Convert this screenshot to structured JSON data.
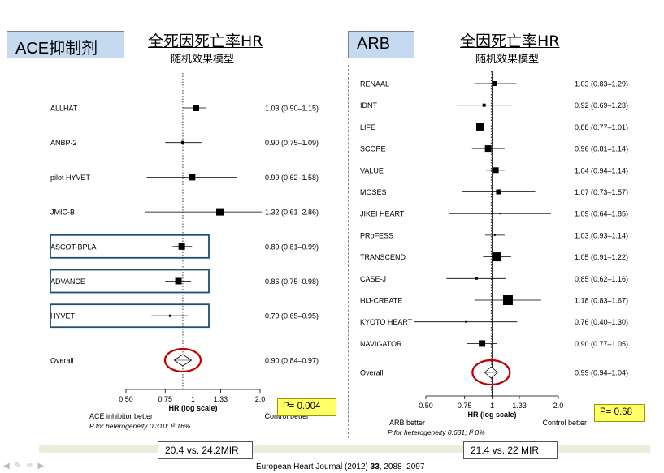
{
  "left_panel": {
    "tag": "ACE抑制剂",
    "title": "全死因死亡率HR",
    "subtitle": "随机效果模型",
    "pvalue_box": "P= 0.004",
    "events_box": "20.4 vs. 24.2MIR"
  },
  "right_panel": {
    "tag": "ARB",
    "title": "全因死亡率HR",
    "subtitle": "随机效果模型",
    "pvalue_box": "P= 0.68",
    "events_box": "21.4 vs. 22 MIR"
  },
  "citation": {
    "prefix": "European Heart Journal (2012) ",
    "volume": "33",
    "suffix": ", 2088–2097"
  },
  "chart_data": [
    {
      "type": "forest",
      "xlabel": "HR (log scale)",
      "x_scale": "log",
      "xticks": [
        0.5,
        0.75,
        1,
        1.33,
        2.0
      ],
      "xtick_labels": [
        "0.50",
        "0.75",
        "1",
        "1.33",
        "2.0"
      ],
      "xlim": [
        0.5,
        2.0
      ],
      "reference_line": 1,
      "overall_line": 0.9,
      "favours_left": "ACE inhibitor better",
      "favours_right": "Control better",
      "heterogeneity": "P for heterogeneity 0.310; I² 16%",
      "studies": [
        {
          "name": "ALLHAT",
          "hr": 1.03,
          "lo": 0.9,
          "hi": 1.15,
          "ci_text": "1.03 (0.90–1.15)",
          "weight": 8,
          "boxed": false
        },
        {
          "name": "ANBP-2",
          "hr": 0.9,
          "lo": 0.75,
          "hi": 1.09,
          "ci_text": "0.90 (0.75–1.09)",
          "weight": 4,
          "boxed": false
        },
        {
          "name": "pilot HYVET",
          "hr": 0.99,
          "lo": 0.62,
          "hi": 1.58,
          "ci_text": "0.99 (0.62–1.58)",
          "weight": 8,
          "boxed": false
        },
        {
          "name": "JMIC-B",
          "hr": 1.32,
          "lo": 0.61,
          "hi": 2.86,
          "ci_text": "1.32 (0.61–2.86)",
          "weight": 9,
          "boxed": false
        },
        {
          "name": "ASCOT-BPLA",
          "hr": 0.89,
          "lo": 0.81,
          "hi": 0.99,
          "ci_text": "0.89 (0.81–0.99)",
          "weight": 8,
          "boxed": true
        },
        {
          "name": "ADVANCE",
          "hr": 0.86,
          "lo": 0.75,
          "hi": 0.98,
          "ci_text": "0.86 (0.75–0.98)",
          "weight": 8,
          "boxed": true
        },
        {
          "name": "HYVET",
          "hr": 0.79,
          "lo": 0.65,
          "hi": 0.95,
          "ci_text": "0.79 (0.65–0.95)",
          "weight": 3,
          "boxed": true
        }
      ],
      "overall": {
        "name": "Overall",
        "hr": 0.9,
        "lo": 0.84,
        "hi": 0.97,
        "ci_text": "0.90 (0.84–0.97)"
      }
    },
    {
      "type": "forest",
      "xlabel": "HR (log scale)",
      "x_scale": "log",
      "xticks": [
        0.5,
        0.75,
        1,
        1.33,
        2.0
      ],
      "xtick_labels": [
        "0.50",
        "0.75",
        "1",
        "1.33",
        "2.0"
      ],
      "xlim": [
        0.5,
        2.0
      ],
      "reference_line": 1,
      "overall_line": 0.99,
      "favours_left": "ARB better",
      "favours_right": "Control better",
      "heterogeneity": "P for heterogeneity 0.631; I² 0%",
      "studies": [
        {
          "name": "RENAAL",
          "hr": 1.03,
          "lo": 0.83,
          "hi": 1.29,
          "ci_text": "1.03 (0.83–1.29)",
          "weight": 6,
          "boxed": false
        },
        {
          "name": "IDNT",
          "hr": 0.92,
          "lo": 0.69,
          "hi": 1.23,
          "ci_text": "0.92 (0.69–1.23)",
          "weight": 4,
          "boxed": false
        },
        {
          "name": "LIFE",
          "hr": 0.88,
          "lo": 0.77,
          "hi": 1.01,
          "ci_text": "0.88 (0.77–1.01)",
          "weight": 9,
          "boxed": false
        },
        {
          "name": "SCOPE",
          "hr": 0.96,
          "lo": 0.81,
          "hi": 1.14,
          "ci_text": "0.96 (0.81–1.14)",
          "weight": 8,
          "boxed": false
        },
        {
          "name": "VALUE",
          "hr": 1.04,
          "lo": 0.94,
          "hi": 1.14,
          "ci_text": "1.04 (0.94–1.14)",
          "weight": 7,
          "boxed": false
        },
        {
          "name": "MOSES",
          "hr": 1.07,
          "lo": 0.73,
          "hi": 1.57,
          "ci_text": "1.07 (0.73–1.57)",
          "weight": 6,
          "boxed": false
        },
        {
          "name": "JIKEI HEART",
          "hr": 1.09,
          "lo": 0.64,
          "hi": 1.85,
          "ci_text": "1.09 (0.64–1.85)",
          "weight": 2,
          "boxed": false
        },
        {
          "name": "PRoFESS",
          "hr": 1.03,
          "lo": 0.93,
          "hi": 1.14,
          "ci_text": "1.03 (0.93–1.14)",
          "weight": 2,
          "boxed": false
        },
        {
          "name": "TRANSCEND",
          "hr": 1.05,
          "lo": 0.91,
          "hi": 1.22,
          "ci_text": "1.05 (0.91–1.22)",
          "weight": 11,
          "boxed": false
        },
        {
          "name": "CASE-J",
          "hr": 0.85,
          "lo": 0.62,
          "hi": 1.16,
          "ci_text": "0.85 (0.62–1.16)",
          "weight": 3,
          "boxed": false
        },
        {
          "name": "HIJ-CREATE",
          "hr": 1.18,
          "lo": 0.83,
          "hi": 1.67,
          "ci_text": "1.18 (0.83–1.67)",
          "weight": 12,
          "boxed": false
        },
        {
          "name": "KYOTO HEART",
          "hr": 0.76,
          "lo": 0.4,
          "hi": 1.3,
          "ci_text": "0.76 (0.40–1.30)",
          "weight": 2,
          "boxed": false
        },
        {
          "name": "NAVIGATOR",
          "hr": 0.9,
          "lo": 0.77,
          "hi": 1.05,
          "ci_text": "0.90 (0.77–1.05)",
          "weight": 8,
          "boxed": false
        }
      ],
      "overall": {
        "name": "Overall",
        "hr": 0.99,
        "lo": 0.94,
        "hi": 1.04,
        "ci_text": "0.99 (0.94–1.04)"
      }
    }
  ],
  "colors": {
    "tag_fill": "#c5d9f1",
    "highlight_box": "#1f4e79",
    "overall_ring": "#c00000",
    "pvalue_fill": "#ffff66",
    "footer_band": "#eaeedd"
  }
}
